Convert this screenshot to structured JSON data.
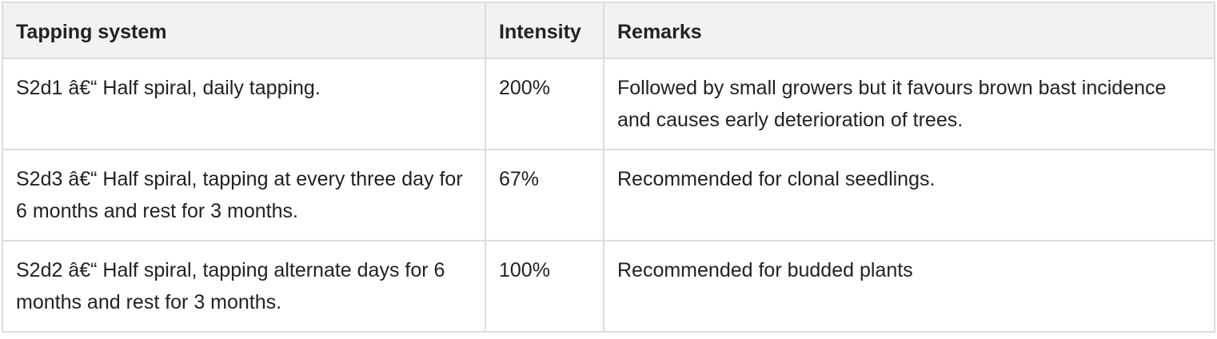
{
  "table": {
    "headers": [
      "Tapping system",
      "Intensity",
      "Remarks"
    ],
    "rows": [
      {
        "system": "S2d1 â€“ Half spiral, daily tapping.",
        "intensity": "200%",
        "remarks": "Followed by small growers but it favours brown bast incidence and causes early deterioration of trees."
      },
      {
        "system": "S2d3 â€“ Half spiral, tapping at every three day for 6 months and rest for 3 months.",
        "intensity": "67%",
        "remarks": "Recommended for clonal seedlings."
      },
      {
        "system": "S2d2 â€“ Half spiral, tapping alternate days for 6 months and rest for 3 months.",
        "intensity": "100%",
        "remarks": "Recommended for budded plants"
      }
    ]
  }
}
